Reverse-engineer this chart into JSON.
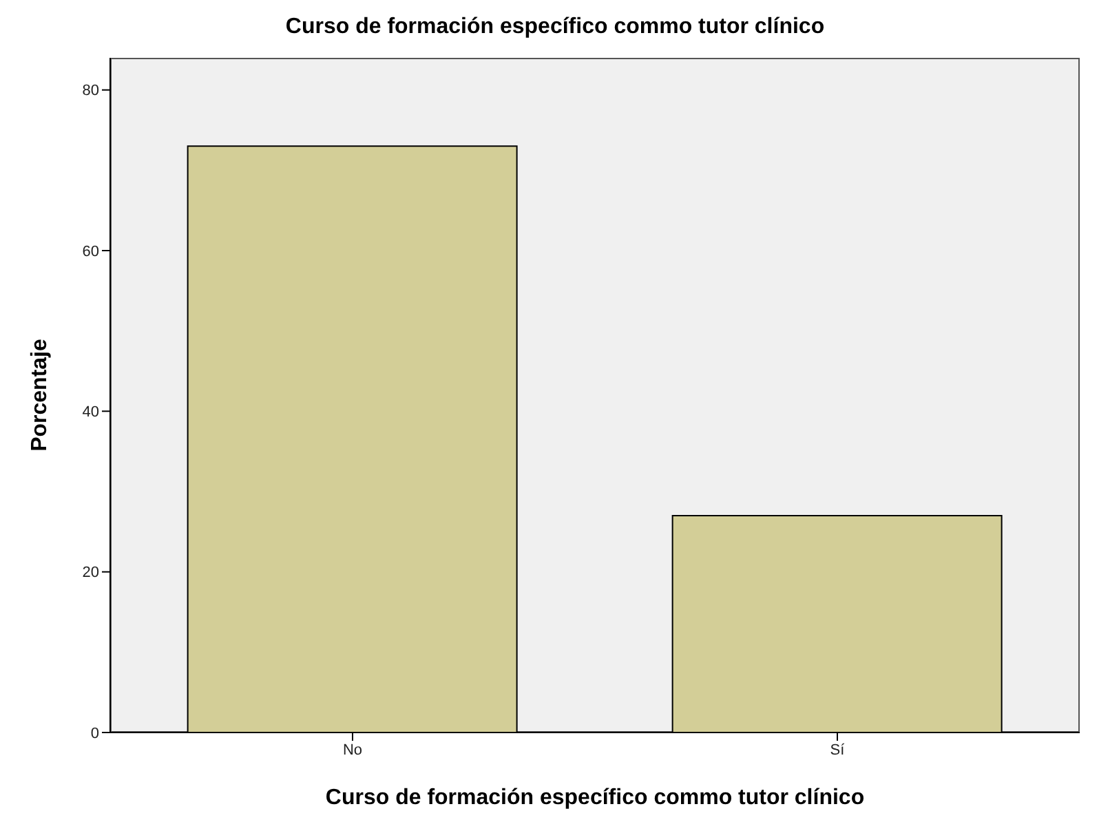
{
  "chart_data": {
    "type": "bar",
    "title": "Curso de formación específico commo tutor clínico",
    "xlabel": "Curso de formación específico commo tutor clínico",
    "ylabel": "Porcentaje",
    "categories": [
      "No",
      "Sí"
    ],
    "values": [
      73,
      27
    ],
    "color": "#d3ce97",
    "ylim": [
      0,
      84
    ],
    "yticks": [
      0,
      20,
      40,
      60,
      80
    ],
    "grid": false,
    "legend": false
  }
}
